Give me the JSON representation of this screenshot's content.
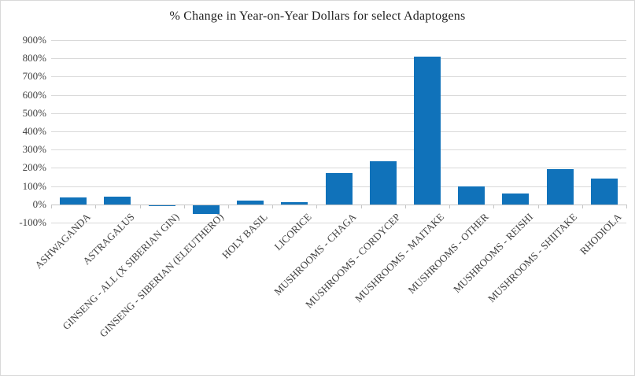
{
  "chart_data": {
    "type": "bar",
    "title": "% Change in Year-on-Year Dollars for select Adaptogens",
    "categories": [
      "ASHWAGANDA",
      "ASTRAGALUS",
      "GINSENG - ALL (X SIBERIAN GIN)",
      "GINSENG - SIBERIAN (ELEUTHERO)",
      "HOLY BASIL",
      "LICORICE",
      "MUSHROOMS - CHAGA",
      "MUSHROOMS - CORDYCEP",
      "MUSHROOMS - MAITAKE",
      "MUSHROOMS - OTHER",
      "MUSHROOMS - REISHI",
      "MUSHROOMS - SHIITAKE",
      "RHODIOLA"
    ],
    "values": [
      38,
      44,
      -5,
      -50,
      21,
      13,
      170,
      235,
      810,
      100,
      60,
      192,
      143
    ],
    "xlabel": "",
    "ylabel": "",
    "ylim": [
      -100,
      900
    ],
    "ytick_step": 100,
    "ytick_suffix": "%",
    "grid": true,
    "legend": "none",
    "bar_color": "#1072ba",
    "gridline_color": "#d9d9d9",
    "axis_color": "#c6c6c6",
    "tick_color": "#c6c6c6",
    "label_color": "#404040",
    "title_color": "#1f1f1f",
    "background_color": "#ffffff",
    "border_color": "#d9d9d9"
  }
}
